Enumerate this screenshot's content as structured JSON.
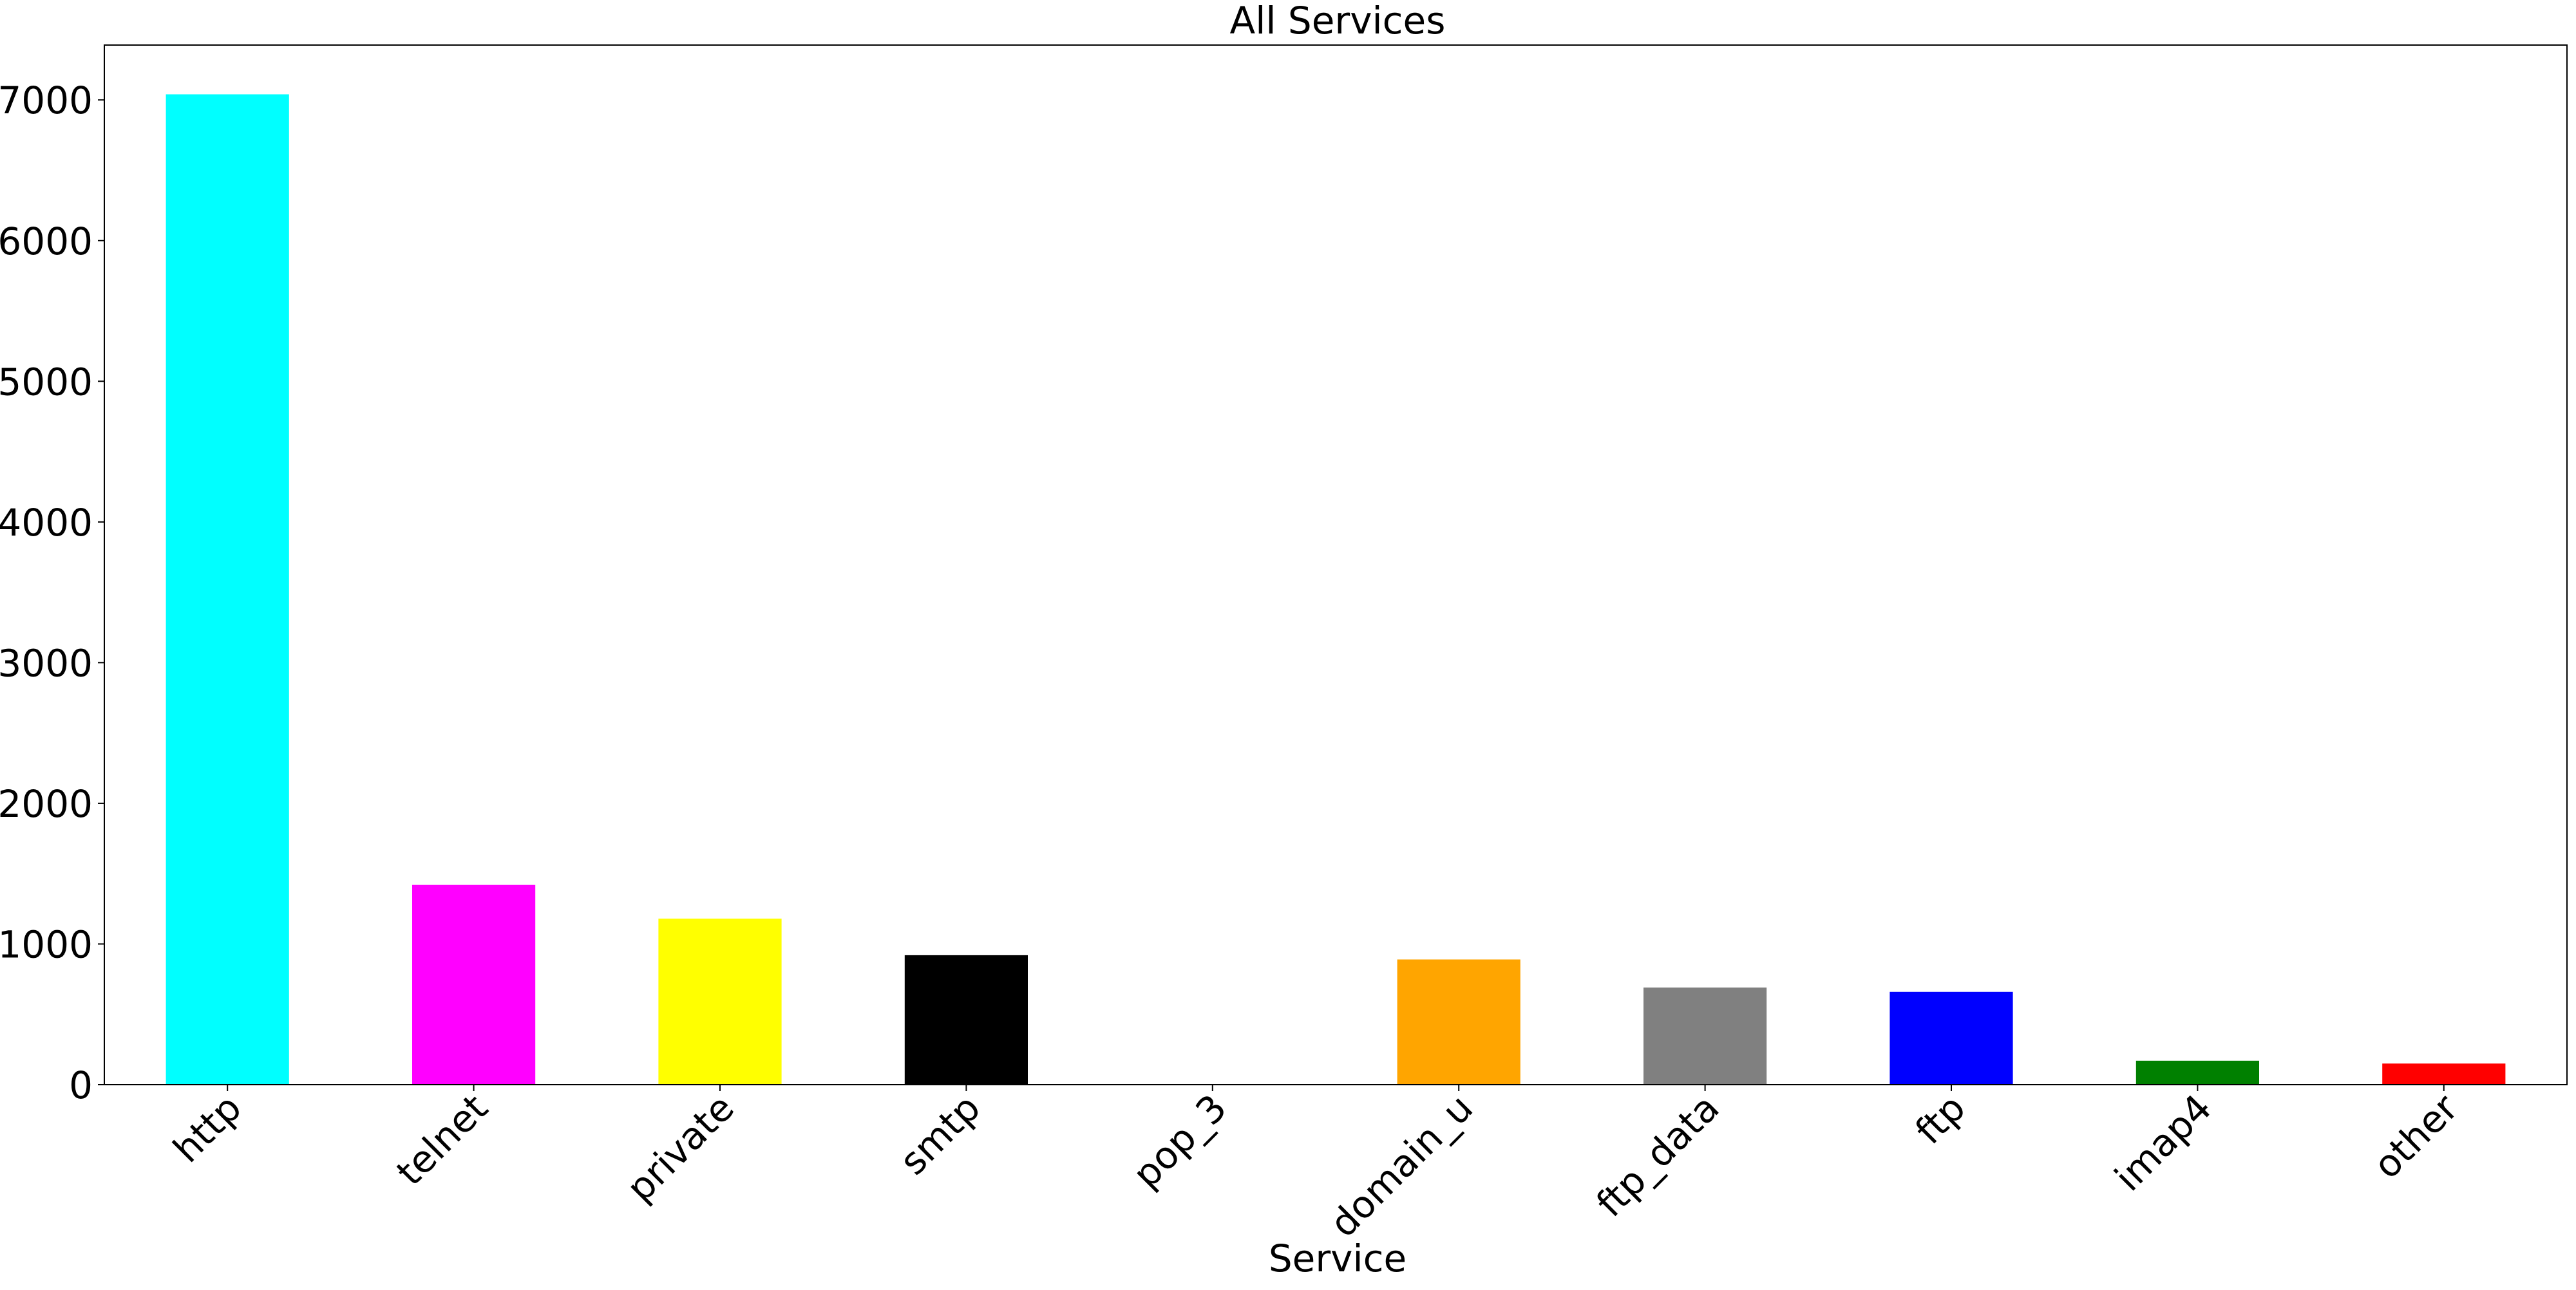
{
  "chart_data": {
    "type": "bar",
    "title": "All Services",
    "xlabel": "Service",
    "ylabel": "",
    "categories": [
      "http",
      "telnet",
      "private",
      "smtp",
      "pop_3",
      "domain_u",
      "ftp_data",
      "ftp",
      "imap4",
      "other"
    ],
    "values": [
      7040,
      1420,
      1180,
      920,
      0,
      890,
      690,
      660,
      170,
      150
    ],
    "colors": [
      "#00ffff",
      "#ff00ff",
      "#ffff00",
      "#000000",
      "#ffffff",
      "#ffa500",
      "#808080",
      "#0000ff",
      "#008000",
      "#ff0000"
    ],
    "ylim": [
      0,
      7390
    ],
    "yticks": [
      0,
      1000,
      2000,
      3000,
      4000,
      5000,
      6000,
      7000
    ],
    "grid": false,
    "legend": "none"
  }
}
